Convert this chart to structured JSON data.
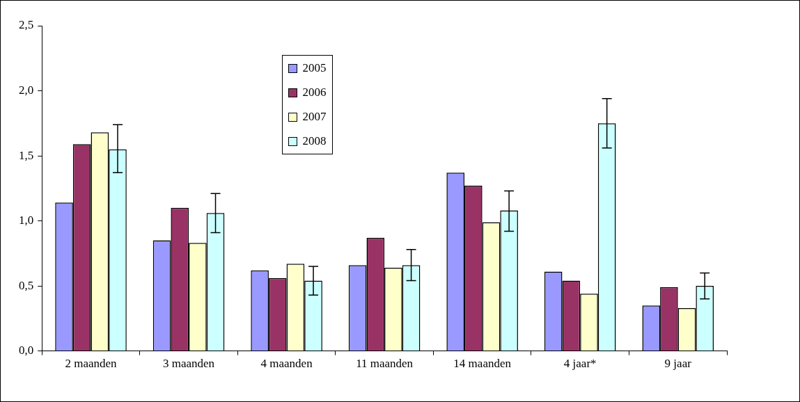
{
  "chart_data": {
    "type": "bar",
    "categories": [
      "2 maanden",
      "3 maanden",
      "4 maanden",
      "11 maanden",
      "14 maanden",
      "4 jaar*",
      "9 jaar"
    ],
    "series": [
      {
        "name": "2005",
        "color": "#9999ff",
        "values": [
          1.14,
          0.85,
          0.62,
          0.66,
          1.37,
          0.61,
          0.35
        ]
      },
      {
        "name": "2006",
        "color": "#993366",
        "values": [
          1.59,
          1.1,
          0.56,
          0.87,
          1.27,
          0.54,
          0.49
        ]
      },
      {
        "name": "2007",
        "color": "#ffffcc",
        "values": [
          1.68,
          0.83,
          0.67,
          0.64,
          0.99,
          0.44,
          0.33
        ]
      },
      {
        "name": "2008",
        "color": "#ccffff",
        "values": [
          1.55,
          1.06,
          0.54,
          0.66,
          1.08,
          1.75,
          0.5
        ],
        "errors": [
          [
            1.37,
            1.74
          ],
          [
            0.91,
            1.21
          ],
          [
            0.43,
            0.65
          ],
          [
            0.54,
            0.78
          ],
          [
            0.92,
            1.23
          ],
          [
            1.56,
            1.94
          ],
          [
            0.4,
            0.6
          ]
        ]
      }
    ],
    "ylim": [
      0,
      2.5
    ],
    "yticks": [
      {
        "value": 0,
        "label": "0,0"
      },
      {
        "value": 0.5,
        "label": "0,5"
      },
      {
        "value": 1,
        "label": "1,0"
      },
      {
        "value": 1.5,
        "label": "1,5"
      },
      {
        "value": 2,
        "label": "2,0"
      },
      {
        "value": 2.5,
        "label": "2,5"
      }
    ],
    "grid": false,
    "legend": "top"
  }
}
